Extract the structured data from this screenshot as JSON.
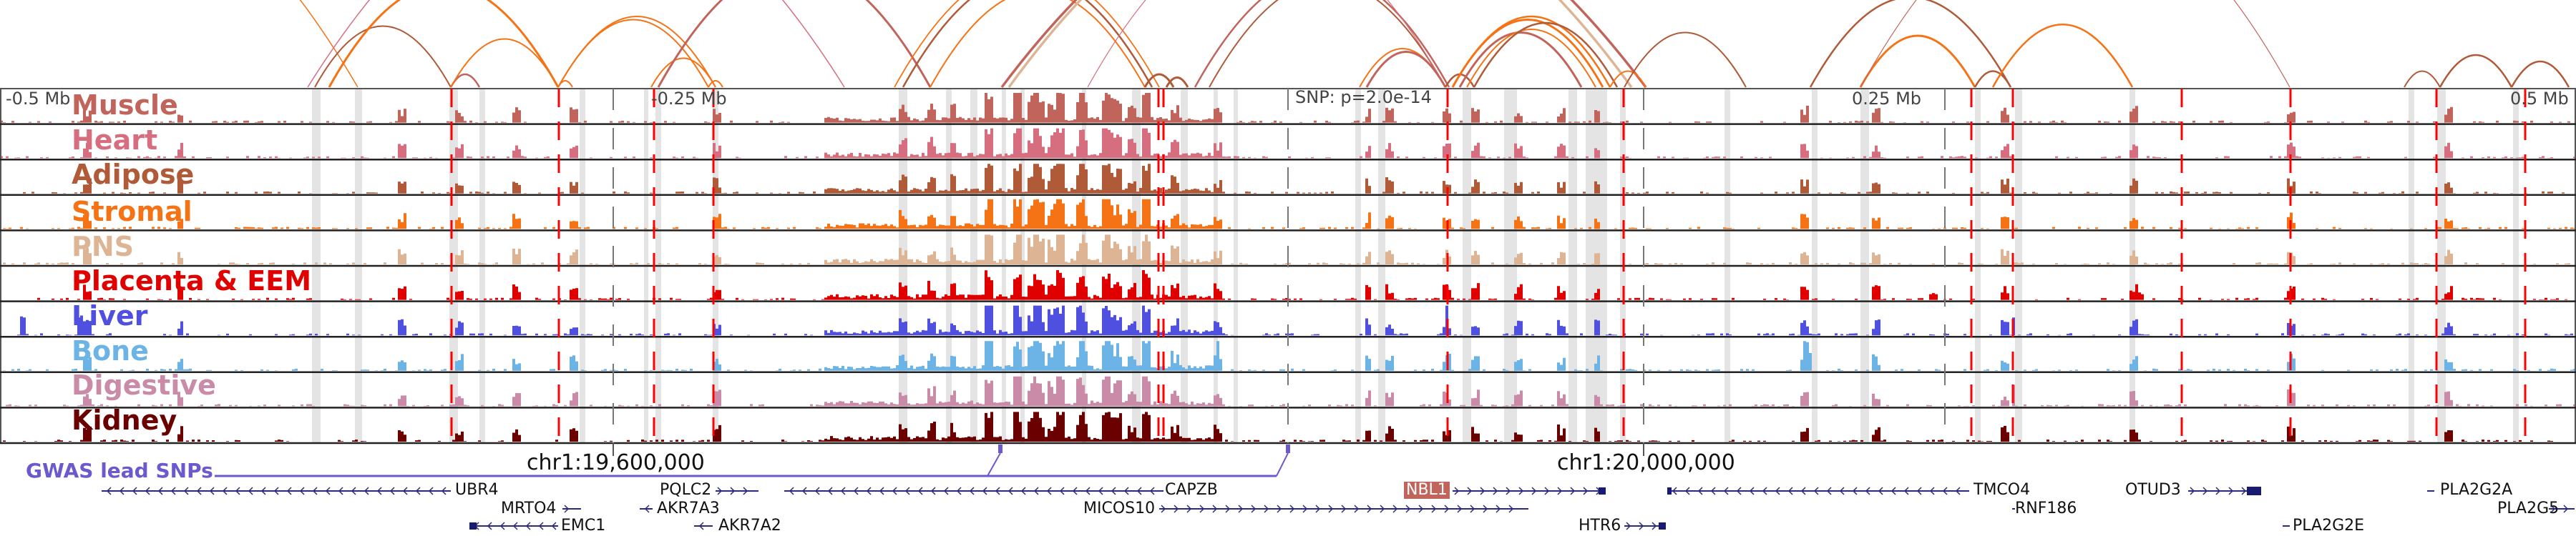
{
  "tracks": [
    {
      "name": "Muscle",
      "color": "#c1655c"
    },
    {
      "name": "Heart",
      "color": "#d66e80"
    },
    {
      "name": "Adipose",
      "color": "#b05a38"
    },
    {
      "name": "Stromal",
      "color": "#f57315"
    },
    {
      "name": "PNS",
      "color": "#ddb595"
    },
    {
      "name": "Placenta & EEM",
      "color": "#e00000"
    },
    {
      "name": "Liver",
      "color": "#5050e0"
    },
    {
      "name": "Bone",
      "color": "#6cb4e6"
    },
    {
      "name": "Digestive",
      "color": "#c98ba8"
    },
    {
      "name": "Kidney",
      "color": "#6a0000"
    }
  ],
  "axis": {
    "left_label": "-0.5 Mb",
    "mid_left_label": "-0.25 Mb",
    "snp_label": "SNP: p=2.0e-14",
    "mid_right_label": "0.25 Mb",
    "right_label": "0.5 Mb"
  },
  "coordinates": {
    "tick1": "chr1:19,600,000",
    "tick2": "chr1:20,000,000"
  },
  "gwas": {
    "label": "GWAS lead SNPs",
    "color": "#6a5acd"
  },
  "genes": [
    {
      "name": "UBR4",
      "strand": "-",
      "row": 0
    },
    {
      "name": "PQLC2",
      "strand": "+",
      "row": 0
    },
    {
      "name": "CAPZB",
      "strand": "-",
      "row": 0
    },
    {
      "name": "NBL1",
      "strand": "+",
      "row": 0,
      "highlight": true
    },
    {
      "name": "TMCO4",
      "strand": "-",
      "row": 0
    },
    {
      "name": "OTUD3",
      "strand": "+",
      "row": 0
    },
    {
      "name": "PLA2G2A",
      "strand": "-",
      "row": 0
    },
    {
      "name": "MRTO4",
      "strand": "+",
      "row": 1
    },
    {
      "name": "AKR7A3",
      "strand": "-",
      "row": 1
    },
    {
      "name": "MICOS10",
      "strand": "+",
      "row": 1
    },
    {
      "name": "RNF186",
      "strand": "+",
      "row": 1
    },
    {
      "name": "PLA2G5",
      "strand": "+",
      "row": 1
    },
    {
      "name": "EMC1",
      "strand": "-",
      "row": 2
    },
    {
      "name": "AKR7A2",
      "strand": "-",
      "row": 2
    },
    {
      "name": "HTR6",
      "strand": "+",
      "row": 2
    },
    {
      "name": "PLA2G2E",
      "strand": "-",
      "row": 2
    }
  ],
  "colors": {
    "arc_orange": "#f57315",
    "arc_brown": "#b05a38",
    "arc_rose": "#c1655c",
    "arc_pink": "#d66e80",
    "arc_tan": "#ddb595",
    "snp_line": "#ff0000",
    "highlight_band": "#e4e4e4",
    "gene_color": "#2a2a80"
  }
}
